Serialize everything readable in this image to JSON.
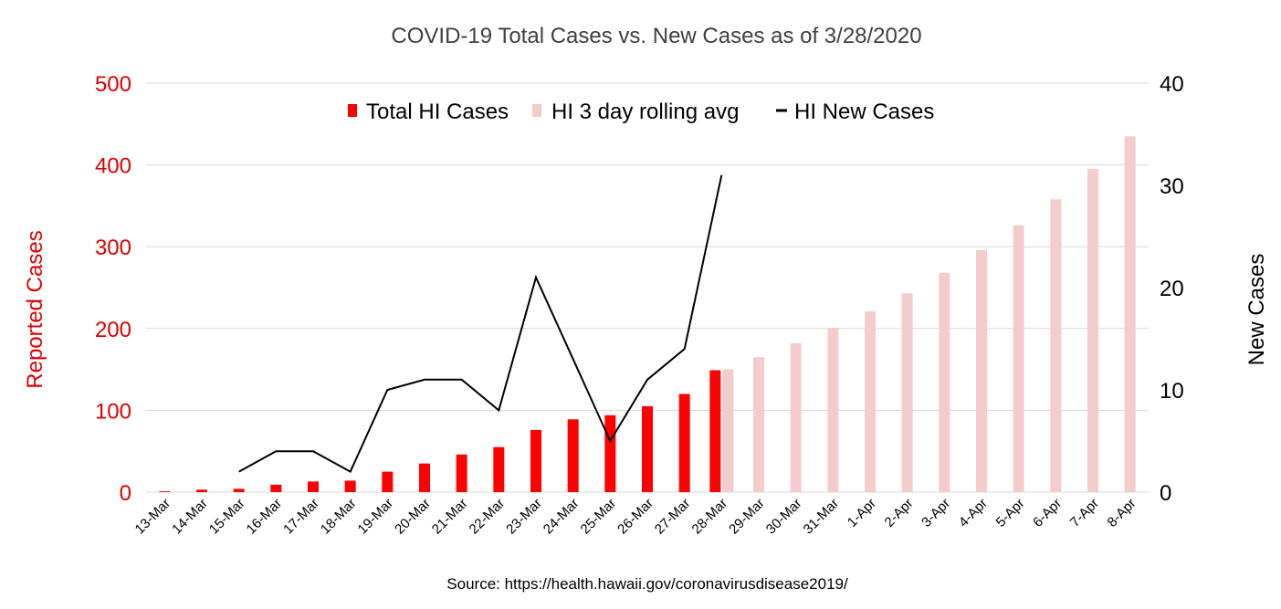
{
  "chart_data": {
    "type": "bar",
    "title": "COVID-19 Total Cases vs. New Cases as of 3/28/2020",
    "ylabel_left": "Reported Cases",
    "ylabel_right": "New Cases",
    "ylim_left": [
      0,
      500
    ],
    "ylim_right": [
      0,
      40
    ],
    "yticks_left": [
      "0",
      "100",
      "200",
      "300",
      "400",
      "500"
    ],
    "yticks_right": [
      "0",
      "10",
      "20",
      "30",
      "40"
    ],
    "grid": true,
    "legend_position": "top-center",
    "categories": [
      "13-Mar",
      "14-Mar",
      "15-Mar",
      "16-Mar",
      "17-Mar",
      "18-Mar",
      "19-Mar",
      "20-Mar",
      "21-Mar",
      "22-Mar",
      "23-Mar",
      "24-Mar",
      "25-Mar",
      "26-Mar",
      "27-Mar",
      "28-Mar",
      "29-Mar",
      "30-Mar",
      "31-Mar",
      "1-Apr",
      "2-Apr",
      "3-Apr",
      "4-Apr",
      "5-Apr",
      "6-Apr",
      "7-Apr",
      "8-Apr"
    ],
    "series": [
      {
        "name": "Total HI Cases",
        "type": "bar",
        "axis": "left",
        "color": "#ff0000",
        "values": [
          1,
          3,
          4,
          9,
          13,
          14,
          25,
          35,
          46,
          55,
          76,
          89,
          94,
          105,
          120,
          149,
          null,
          null,
          null,
          null,
          null,
          null,
          null,
          null,
          null,
          null,
          null
        ]
      },
      {
        "name": "HI 3 day rolling avg",
        "type": "bar",
        "axis": "left",
        "color": "#f4cccc",
        "values": [
          null,
          null,
          null,
          null,
          null,
          null,
          null,
          null,
          null,
          null,
          null,
          null,
          null,
          null,
          null,
          150,
          165,
          182,
          201,
          221,
          243,
          268,
          296,
          326,
          358,
          395,
          435
        ]
      },
      {
        "name": "HI New Cases",
        "type": "line",
        "axis": "right",
        "color": "#000000",
        "values": [
          null,
          null,
          2,
          4,
          4,
          2,
          10,
          11,
          11,
          8,
          21,
          13,
          5,
          11,
          14,
          31,
          null,
          null,
          null,
          null,
          null,
          null,
          null,
          null,
          null,
          null,
          null
        ]
      }
    ],
    "left_axis_color": "#e00000",
    "source": "Source: https://health.hawaii.gov/coronavirusdisease2019/"
  }
}
